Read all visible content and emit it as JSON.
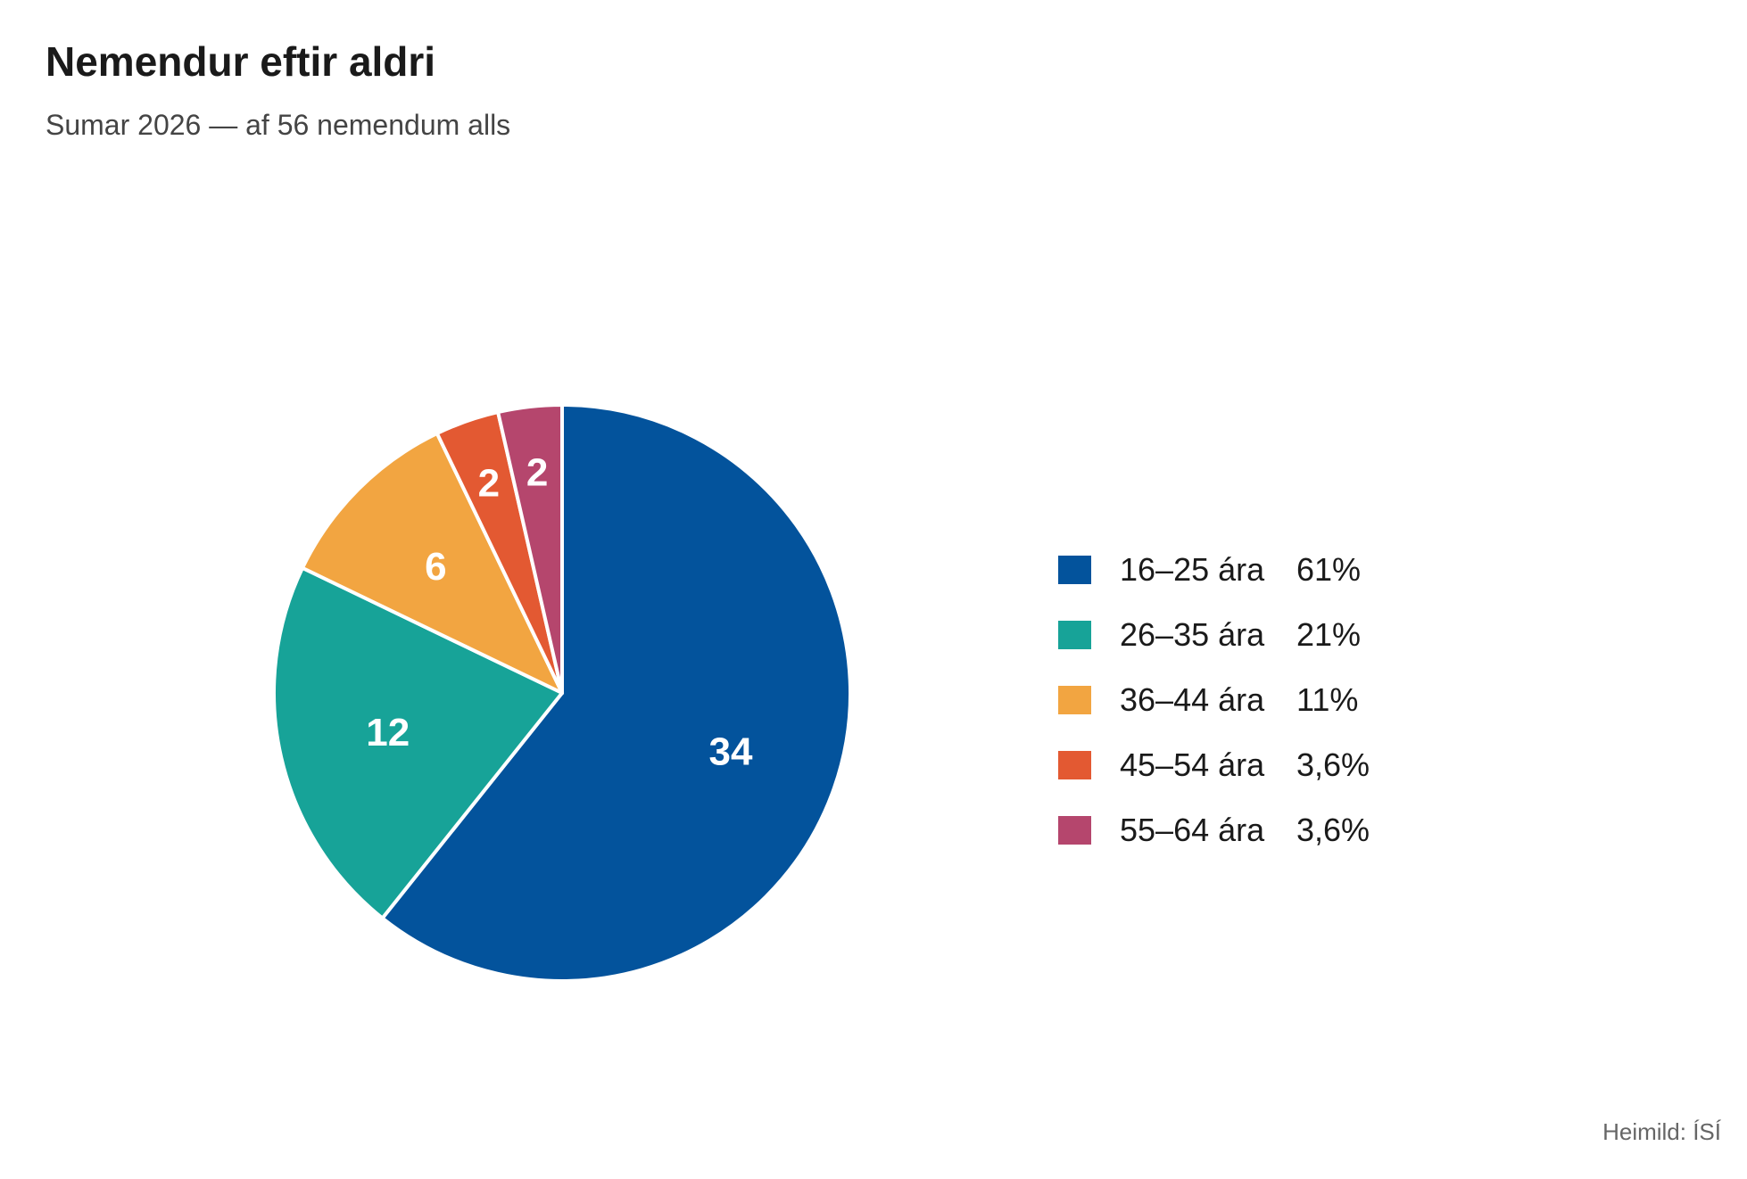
{
  "chart_data": {
    "type": "pie",
    "title": "Nemendur eftir aldri",
    "subtitle": "Sumar 2026 — af 56 nemendum alls",
    "total": 56,
    "legend_position": "right",
    "slices": [
      {
        "label": "16–25 ára",
        "value": 34,
        "value_label": "34",
        "percent_label": "61%",
        "color": "#03539c"
      },
      {
        "label": "26–35 ára",
        "value": 12,
        "value_label": "12",
        "percent_label": "21%",
        "color": "#17a398"
      },
      {
        "label": "36–44 ára",
        "value": 6,
        "value_label": "6",
        "percent_label": "11%",
        "color": "#f2a541"
      },
      {
        "label": "45–54 ára",
        "value": 2,
        "value_label": "2",
        "percent_label": "3,6%",
        "color": "#e35932"
      },
      {
        "label": "55–64 ára",
        "value": 2,
        "value_label": "2",
        "percent_label": "3,6%",
        "color": "#b5466d"
      }
    ],
    "source": "Heimild: ÍSÍ"
  }
}
